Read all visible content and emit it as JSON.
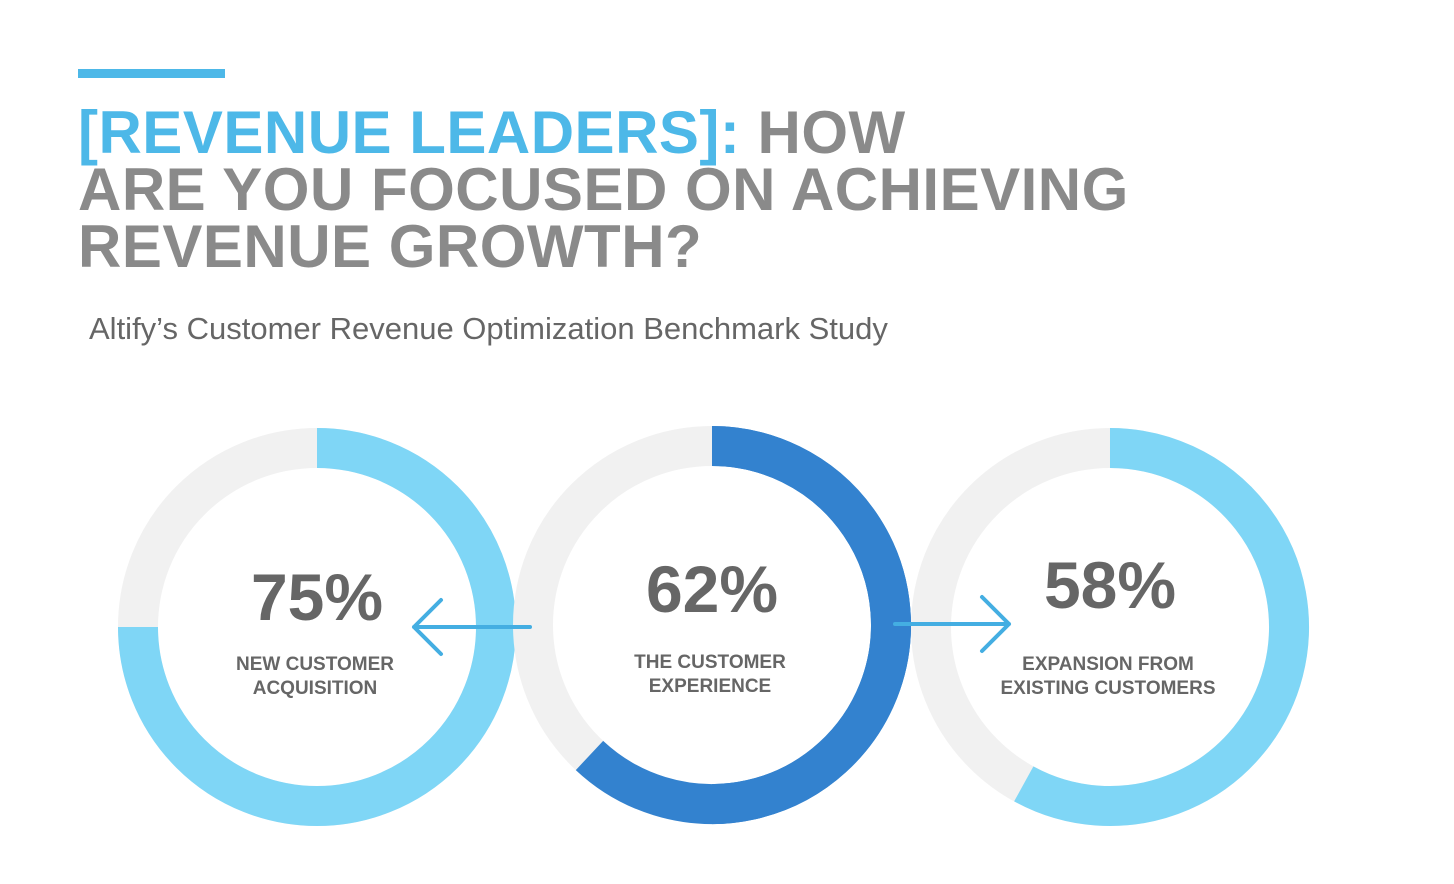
{
  "header": {
    "title_highlight": "[REVENUE LEADERS]:",
    "title_rest_line1": " HOW",
    "title_line2": "ARE YOU FOCUSED ON ACHIEVING",
    "title_line3": "REVENUE GROWTH?",
    "subtitle": "Altify’s Customer Revenue Optimization Benchmark Study"
  },
  "colors": {
    "accent": "#4db8e8",
    "title_gray": "#8a8a8a",
    "text_gray": "#666666",
    "track": "#f1f1f1",
    "light_blue": "#7fd6f6",
    "dark_blue": "#3382cf",
    "arrow": "#44aee2"
  },
  "chart_data": {
    "type": "pie",
    "title": "",
    "series": [
      {
        "label_lines": [
          "NEW CUSTOMER",
          "ACQUISITION"
        ],
        "value": 75,
        "value_label": "75%",
        "color": "#7fd6f6"
      },
      {
        "label_lines": [
          "THE CUSTOMER",
          "EXPERIENCE"
        ],
        "value": 62,
        "value_label": "62%",
        "color": "#3382cf"
      },
      {
        "label_lines": [
          "EXPANSION FROM",
          "EXISTING CUSTOMERS"
        ],
        "value": 58,
        "value_label": "58%",
        "color": "#7fd6f6"
      }
    ]
  }
}
